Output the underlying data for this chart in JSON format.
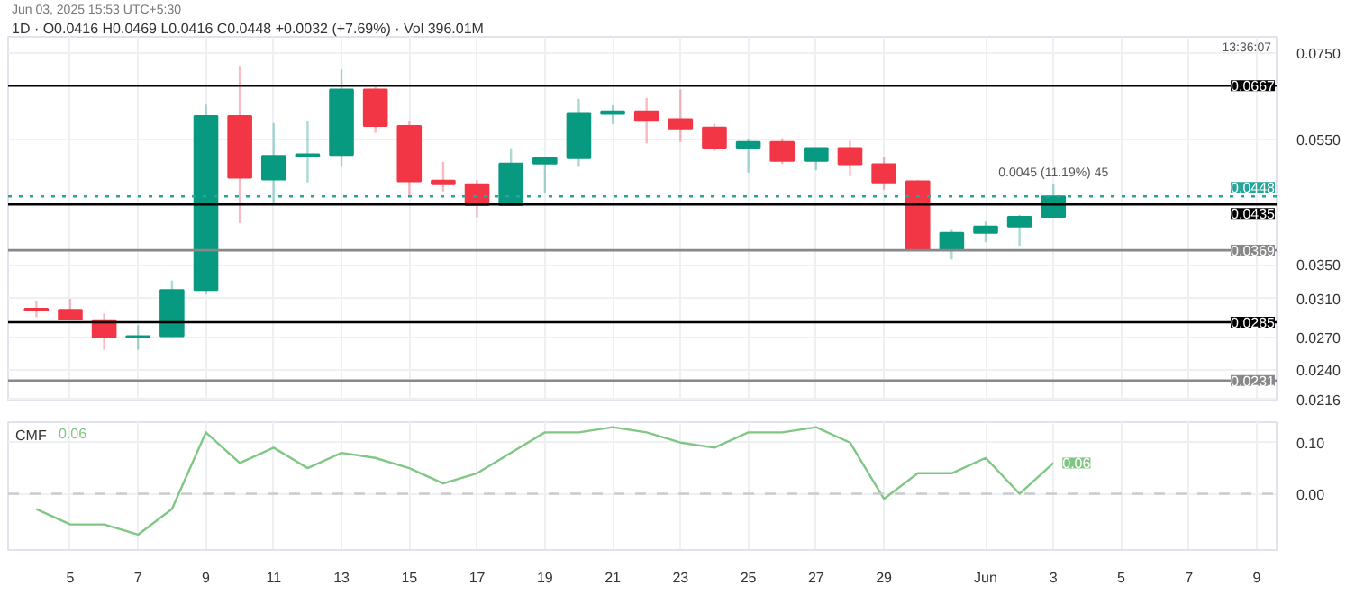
{
  "chart_data": [
    {
      "type": "candlestick",
      "title": "Jun 03, 2025 15:53 UTC+5:30",
      "subtitle": "1D · O0.0416 H0.0469 L0.0416 C0.0448 +0.0032 (+7.69%) · Vol 396.01M",
      "x": [
        "2025-05-04",
        "2025-05-05",
        "2025-05-06",
        "2025-05-07",
        "2025-05-08",
        "2025-05-09",
        "2025-05-10",
        "2025-05-11",
        "2025-05-12",
        "2025-05-13",
        "2025-05-14",
        "2025-05-15",
        "2025-05-16",
        "2025-05-17",
        "2025-05-18",
        "2025-05-19",
        "2025-05-20",
        "2025-05-21",
        "2025-05-22",
        "2025-05-23",
        "2025-05-24",
        "2025-05-25",
        "2025-05-26",
        "2025-05-27",
        "2025-05-28",
        "2025-05-29",
        "2025-05-30",
        "2025-05-31",
        "2025-06-01",
        "2025-06-02",
        "2025-06-03"
      ],
      "ohlc": [
        [
          0.0299,
          0.0308,
          0.029,
          0.0298
        ],
        [
          0.0298,
          0.031,
          0.0287,
          0.0288
        ],
        [
          0.0287,
          0.0294,
          0.0258,
          0.027
        ],
        [
          0.027,
          0.0282,
          0.0258,
          0.0271
        ],
        [
          0.0271,
          0.0331,
          0.027,
          0.032
        ],
        [
          0.032,
          0.0623,
          0.0315,
          0.0598
        ],
        [
          0.0598,
          0.0716,
          0.0407,
          0.0479
        ],
        [
          0.0476,
          0.0583,
          0.0437,
          0.0518
        ],
        [
          0.0517,
          0.0587,
          0.0471,
          0.0521
        ],
        [
          0.052,
          0.0707,
          0.0498,
          0.0658
        ],
        [
          0.0658,
          0.0664,
          0.0563,
          0.0577
        ],
        [
          0.0577,
          0.0588,
          0.0448,
          0.0473
        ],
        [
          0.0474,
          0.0507,
          0.0456,
          0.0468
        ],
        [
          0.0468,
          0.0475,
          0.0415,
          0.0434
        ],
        [
          0.0434,
          0.0531,
          0.0433,
          0.0504
        ],
        [
          0.0504,
          0.0516,
          0.0454,
          0.0514
        ],
        [
          0.0514,
          0.0636,
          0.0498,
          0.0603
        ],
        [
          0.0603,
          0.0622,
          0.0581,
          0.0608
        ],
        [
          0.0608,
          0.0638,
          0.0542,
          0.0588
        ],
        [
          0.0591,
          0.0658,
          0.0545,
          0.0572
        ],
        [
          0.0574,
          0.0582,
          0.0527,
          0.0532
        ],
        [
          0.0532,
          0.055,
          0.0488,
          0.0545
        ],
        [
          0.0545,
          0.0552,
          0.0503,
          0.0509
        ],
        [
          0.0509,
          0.0534,
          0.0492,
          0.0533
        ],
        [
          0.0533,
          0.0547,
          0.0482,
          0.0503
        ],
        [
          0.0503,
          0.0516,
          0.0459,
          0.0471
        ],
        [
          0.0473,
          0.0475,
          0.0368,
          0.037
        ],
        [
          0.037,
          0.0397,
          0.0357,
          0.0393
        ],
        [
          0.0393,
          0.0409,
          0.038,
          0.0402
        ],
        [
          0.0402,
          0.0419,
          0.0375,
          0.0416
        ],
        [
          0.0416,
          0.0469,
          0.0416,
          0.0448
        ]
      ],
      "colors": [
        "#f23645",
        "#f23645",
        "#f23645",
        "#089981",
        "#089981",
        "#089981",
        "#f23645",
        "#089981",
        "#089981",
        "#089981",
        "#f23645",
        "#f23645",
        "#f23645",
        "#f23645",
        "#089981",
        "#089981",
        "#089981",
        "#089981",
        "#f23645",
        "#f23645",
        "#f23645",
        "#089981",
        "#f23645",
        "#089981",
        "#f23645",
        "#f23645",
        "#f23645",
        "#089981",
        "#089981",
        "#089981",
        "#089981"
      ],
      "log": true,
      "xlim": [
        "2025-05-03T04:00",
        "2025-06-09T14:00"
      ],
      "ylim": [
        0.0215,
        0.0795
      ],
      "xticks": [
        {
          "value": "2025-05-05",
          "label": null
        },
        {
          "value": "2025-05-07",
          "label": null
        },
        {
          "value": "2025-05-09",
          "label": null
        },
        {
          "value": "2025-05-11",
          "label": null
        },
        {
          "value": "2025-05-13",
          "label": null
        },
        {
          "value": "2025-05-15",
          "label": null
        },
        {
          "value": "2025-05-17",
          "label": null
        },
        {
          "value": "2025-05-19",
          "label": null
        },
        {
          "value": "2025-05-21",
          "label": null
        },
        {
          "value": "2025-05-23",
          "label": null
        },
        {
          "value": "2025-05-25",
          "label": null
        },
        {
          "value": "2025-05-27",
          "label": null
        },
        {
          "value": "2025-05-29",
          "label": null
        },
        {
          "value": "2025-06-01",
          "label": null
        },
        {
          "value": "2025-06-03",
          "label": null
        },
        {
          "value": "2025-06-05",
          "label": null
        },
        {
          "value": "2025-06-07",
          "label": null
        },
        {
          "value": "2025-06-09",
          "label": null
        }
      ],
      "yticks": [
        {
          "value": 0.0216,
          "label": "0.0216"
        },
        {
          "value": 0.024,
          "label": "0.0240"
        },
        {
          "value": 0.027,
          "label": "0.0270"
        },
        {
          "value": 0.031,
          "label": "0.0310"
        },
        {
          "value": 0.035,
          "label": "0.0350"
        },
        {
          "value": 0.055,
          "label": "0.0550"
        },
        {
          "value": 0.075,
          "label": "0.0750"
        }
      ],
      "tick_labels": "y",
      "grid": true,
      "ref_lines": [
        {
          "axis": "y",
          "value": 0.0667,
          "label": "0.0667",
          "color": "#000000"
        },
        {
          "axis": "y",
          "value": 0.0435,
          "label": "0.0435",
          "color": "#000000"
        },
        {
          "axis": "y",
          "value": 0.0369,
          "label": "0.0369",
          "color": "#888888"
        },
        {
          "axis": "y",
          "value": 0.0285,
          "label": "0.0285",
          "color": "#000000"
        },
        {
          "axis": "y",
          "value": 0.0231,
          "label": "0.0231",
          "color": "#888888"
        },
        {
          "axis": "y",
          "value": 0.0448,
          "label": "0.0448",
          "color": "#26a69a",
          "line_style": "dotted"
        }
      ],
      "annotations": [
        {
          "text": "0.0045 (11.19%) 45",
          "x": "2025-06-03",
          "y": 0.0469
        },
        "13:36:07"
      ]
    },
    {
      "type": "line",
      "series": [
        {
          "name": "CMF",
          "color": "#81c784",
          "x": [
            "2025-05-04",
            "2025-05-05",
            "2025-05-06",
            "2025-05-07",
            "2025-05-08",
            "2025-05-09",
            "2025-05-10",
            "2025-05-11",
            "2025-05-12",
            "2025-05-13",
            "2025-05-14",
            "2025-05-15",
            "2025-05-16",
            "2025-05-17",
            "2025-05-18",
            "2025-05-19",
            "2025-05-20",
            "2025-05-21",
            "2025-05-22",
            "2025-05-23",
            "2025-05-24",
            "2025-05-25",
            "2025-05-26",
            "2025-05-27",
            "2025-05-28",
            "2025-05-29",
            "2025-05-30",
            "2025-05-31",
            "2025-06-01",
            "2025-06-02",
            "2025-06-03"
          ],
          "values": [
            -0.03,
            -0.06,
            -0.06,
            -0.08,
            -0.03,
            0.12,
            0.06,
            0.09,
            0.05,
            0.08,
            0.07,
            0.05,
            0.02,
            0.04,
            0.08,
            0.12,
            0.12,
            0.13,
            0.12,
            0.1,
            0.09,
            0.12,
            0.12,
            0.13,
            0.1,
            -0.01,
            0.04,
            0.04,
            0.07,
            0.0,
            0.06
          ],
          "value_labels": [
            null,
            null,
            null,
            null,
            null,
            null,
            null,
            null,
            null,
            null,
            null,
            null,
            null,
            null,
            null,
            null,
            null,
            null,
            null,
            null,
            null,
            null,
            null,
            null,
            null,
            null,
            null,
            null,
            null,
            null,
            "0.06"
          ]
        }
      ],
      "annotations": [
        "0.06"
      ],
      "xlim": [
        "2025-05-03T04:00",
        "2025-06-09T14:00"
      ],
      "ylim": [
        -0.11,
        0.14
      ],
      "xticks": [
        {
          "value": "2025-05-05",
          "label": "5"
        },
        {
          "value": "2025-05-07",
          "label": "7"
        },
        {
          "value": "2025-05-09",
          "label": "9"
        },
        {
          "value": "2025-05-11",
          "label": "11"
        },
        {
          "value": "2025-05-13",
          "label": "13"
        },
        {
          "value": "2025-05-15",
          "label": "15"
        },
        {
          "value": "2025-05-17",
          "label": "17"
        },
        {
          "value": "2025-05-19",
          "label": "19"
        },
        {
          "value": "2025-05-21",
          "label": "21"
        },
        {
          "value": "2025-05-23",
          "label": "23"
        },
        {
          "value": "2025-05-25",
          "label": "25"
        },
        {
          "value": "2025-05-27",
          "label": "27"
        },
        {
          "value": "2025-05-29",
          "label": "29"
        },
        {
          "value": "2025-06-01",
          "label": "Jun"
        },
        {
          "value": "2025-06-03",
          "label": "3"
        },
        {
          "value": "2025-06-05",
          "label": "5"
        },
        {
          "value": "2025-06-07",
          "label": "7"
        },
        {
          "value": "2025-06-09",
          "label": "9"
        }
      ],
      "yticks": [
        {
          "value": 0.1,
          "label": "0.10"
        },
        {
          "value": 0,
          "label": "0.00"
        }
      ],
      "grid": true,
      "ref_lines": [
        {
          "axis": "y",
          "value": 0,
          "color": "#cccccc",
          "line_style": "dashed"
        }
      ]
    }
  ]
}
